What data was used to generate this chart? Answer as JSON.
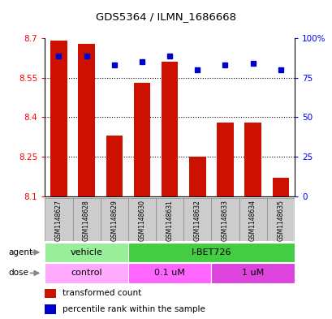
{
  "title": "GDS5364 / ILMN_1686668",
  "samples": [
    "GSM1148627",
    "GSM1148628",
    "GSM1148629",
    "GSM1148630",
    "GSM1148631",
    "GSM1148632",
    "GSM1148633",
    "GSM1148634",
    "GSM1148635"
  ],
  "red_values": [
    8.69,
    8.68,
    8.33,
    8.53,
    8.61,
    8.25,
    8.38,
    8.38,
    8.17
  ],
  "blue_values": [
    89,
    89,
    83,
    85,
    89,
    80,
    83,
    84,
    80
  ],
  "y_min": 8.1,
  "y_max": 8.7,
  "y_ticks": [
    8.1,
    8.25,
    8.4,
    8.55,
    8.7
  ],
  "y_tick_labels": [
    "8.1",
    "8.25",
    "8.4",
    "8.55",
    "8.7"
  ],
  "right_y_ticks": [
    0,
    25,
    50,
    75,
    100
  ],
  "right_y_labels": [
    "0",
    "25",
    "50",
    "75",
    "100%"
  ],
  "bar_color": "#cc1100",
  "dot_color": "#0000cc",
  "bar_bottom": 8.1,
  "legend_red": "transformed count",
  "legend_blue": "percentile rank within the sample",
  "agent_label": "agent",
  "dose_label": "dose",
  "agent_groups": [
    {
      "label": "vehicle",
      "start": 0,
      "end": 3,
      "color": "#99ee99"
    },
    {
      "label": "I-BET726",
      "start": 3,
      "end": 9,
      "color": "#44cc44"
    }
  ],
  "dose_groups": [
    {
      "label": "control",
      "start": 0,
      "end": 3,
      "color": "#ffaaff"
    },
    {
      "label": "0.1 uM",
      "start": 3,
      "end": 6,
      "color": "#ff66ff"
    },
    {
      "label": "1 uM",
      "start": 6,
      "end": 9,
      "color": "#dd44dd"
    }
  ],
  "xlabel_gray": "#cccccc",
  "xlabel_border": "#888888"
}
